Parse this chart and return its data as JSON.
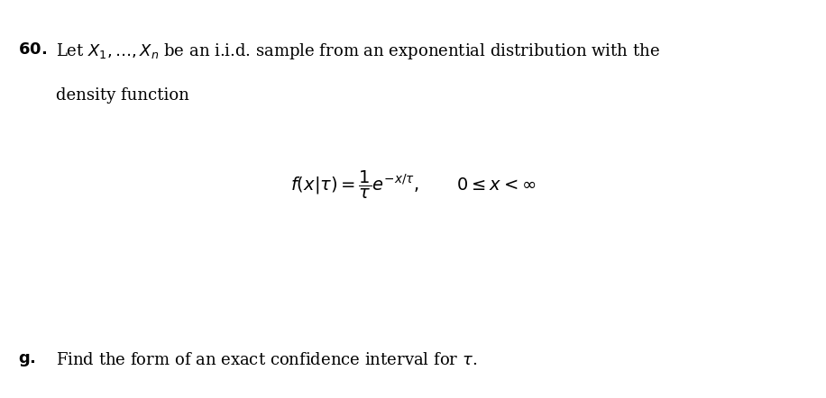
{
  "bg_color": "#ffffff",
  "number_label": "60.",
  "line1": "Let $X_1, \\ldots, X_n$ be an i.i.d. sample from an exponential distribution with the",
  "line2": "density function",
  "formula": "$f(x|\\tau) = \\dfrac{1}{\\tau}e^{-x/\\tau}, \\quad 0 \\leq x < \\infty$",
  "part_g": "g.",
  "part_g_text": "Find the form of an exact confidence interval for $\\tau$.",
  "fig_width": 9.16,
  "fig_height": 4.42,
  "dpi": 100
}
